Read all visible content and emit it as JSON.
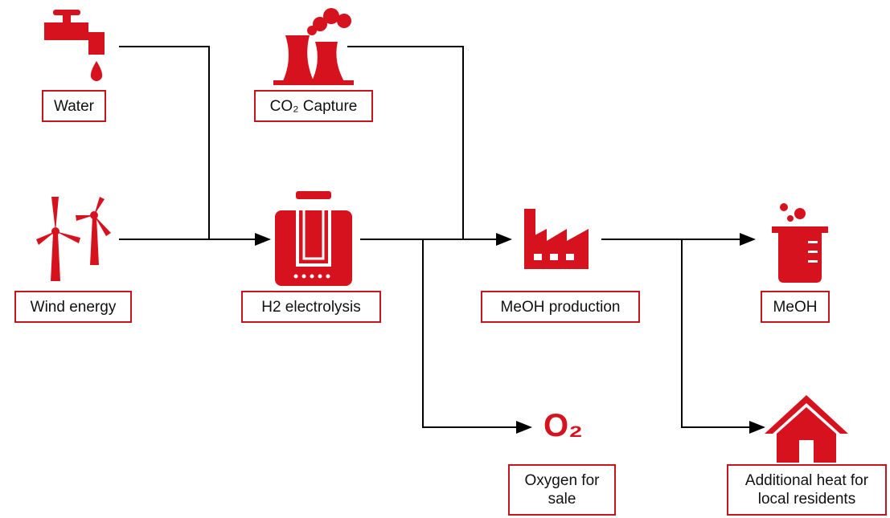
{
  "nodes": [
    {
      "label": "Water"
    },
    {
      "label": "CO₂ Capture"
    },
    {
      "label": "Wind energy"
    },
    {
      "label": "H2 electrolysis"
    },
    {
      "label": "MeOH production"
    },
    {
      "label": "Oxygen for sale",
      "icon_text": "O₂"
    },
    {
      "label": "MeOH"
    },
    {
      "label": "Additional heat for local residents"
    }
  ]
}
